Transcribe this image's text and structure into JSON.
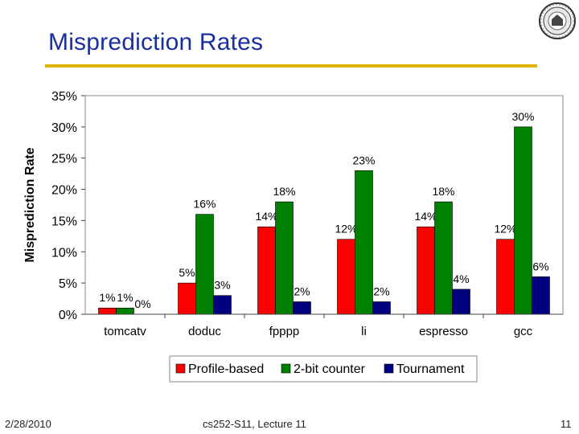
{
  "slide": {
    "title": "Misprediction Rates",
    "footer_date": "2/28/2010",
    "footer_course": "cs252-S11, Lecture 11",
    "page_number": "11"
  },
  "colors": {
    "title": "#1a2f9e",
    "rule": "#e0b400",
    "profile_based": "#ff0000",
    "two_bit_counter": "#008000",
    "tournament": "#000080"
  },
  "icons": {
    "seal": "university-seal-icon"
  },
  "chart_data": {
    "type": "bar",
    "title": "",
    "xlabel": "",
    "ylabel": "Misprediction Rate",
    "ylim": [
      0,
      35
    ],
    "y_ticks": [
      "0%",
      "5%",
      "10%",
      "15%",
      "20%",
      "25%",
      "30%",
      "35%"
    ],
    "categories": [
      "tomcatv",
      "doduc",
      "fpppp",
      "li",
      "espresso",
      "gcc"
    ],
    "legend_position": "bottom",
    "series": [
      {
        "name": "Profile-based",
        "color": "#ff0000",
        "values": [
          1,
          5,
          14,
          12,
          14,
          12
        ],
        "labels": [
          "1%",
          "5%",
          "14%",
          "12%",
          "14%",
          "12%"
        ]
      },
      {
        "name": "2-bit counter",
        "color": "#008000",
        "values": [
          1,
          16,
          18,
          23,
          18,
          30
        ],
        "labels": [
          "1%",
          "16%",
          "18%",
          "23%",
          "18%",
          "30%"
        ]
      },
      {
        "name": "Tournament",
        "color": "#000080",
        "values": [
          0,
          3,
          2,
          2,
          4,
          6
        ],
        "labels": [
          "0%",
          "3%",
          "2%",
          "2%",
          "4%",
          "6%"
        ]
      }
    ]
  }
}
